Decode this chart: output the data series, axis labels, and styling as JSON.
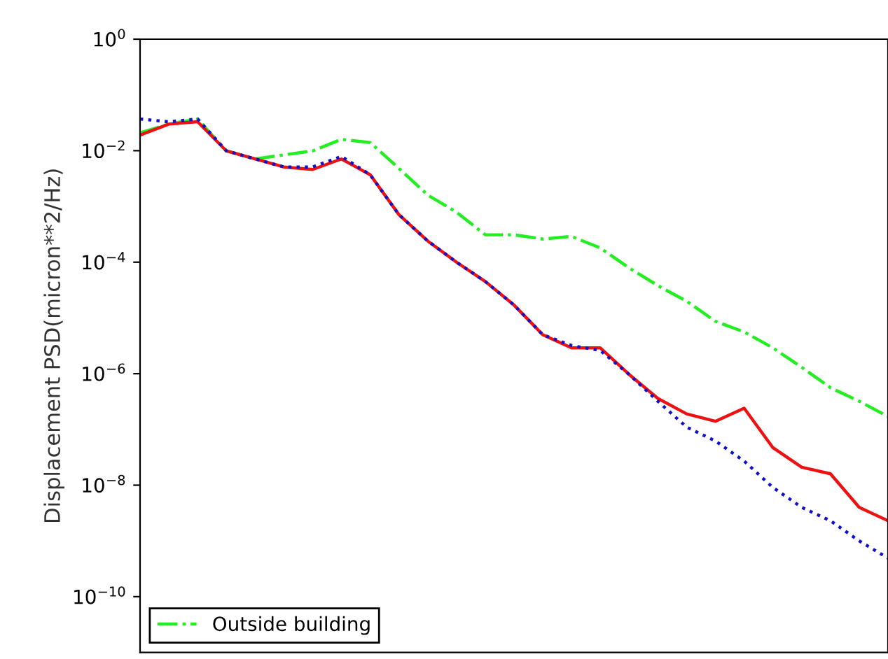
{
  "chart_data": {
    "type": "line",
    "ylabel": "Displacement PSD(micron**2/Hz)",
    "categories": [
      null,
      null,
      null,
      null,
      null,
      null,
      null,
      null,
      null,
      null,
      null,
      null,
      null,
      null,
      null,
      null,
      null,
      null,
      null,
      null,
      null,
      null,
      null,
      null,
      null,
      null,
      null
    ],
    "log": "y",
    "ylim": [
      1e-11,
      1
    ],
    "yticks": [
      {
        "value": 1,
        "label": "10$^{0}$"
      },
      {
        "value": 0.01,
        "label": "10$^{−2}$"
      },
      {
        "value": 0.0001,
        "label": "10$^{−4}$"
      },
      {
        "value": 1e-06,
        "label": "10$^{−6}$"
      },
      {
        "value": 1e-08,
        "label": "10$^{−8}$"
      },
      {
        "value": 1e-10,
        "label": "10$^{−10}$"
      }
    ],
    "tick_labels": "y",
    "grid": false,
    "legend": "bottom left",
    "marker": "none",
    "series": [
      {
        "name": "Outside building",
        "color": "#22ee22",
        "line_style": "dashdot",
        "values": [
          0.021,
          0.03,
          0.037,
          0.0099,
          0.0071,
          0.0084,
          0.0099,
          0.016,
          0.014,
          0.0048,
          0.0016,
          0.00079,
          0.00031,
          0.00031,
          0.00026,
          0.00029,
          0.00018,
          7.9e-05,
          3.8e-05,
          2e-05,
          8.7e-06,
          5.6e-06,
          2.9e-06,
          1.3e-06,
          5.6e-07,
          3.2e-07,
          1.7e-07
        ]
      },
      {
        "color": "#ee1111",
        "line_style": "solid",
        "values": [
          0.019,
          0.03,
          0.033,
          0.0099,
          0.0071,
          0.0051,
          0.0046,
          0.0071,
          0.0037,
          0.00071,
          0.00024,
          0.0001,
          4.5e-05,
          1.7e-05,
          5e-06,
          2.9e-06,
          2.9e-06,
          9.7e-07,
          3.6e-07,
          1.9e-07,
          1.4e-07,
          2.4e-07,
          4.7e-08,
          2.1e-08,
          1.6e-08,
          4e-09,
          2.3e-09
        ]
      },
      {
        "color": "#1111cc",
        "line_style": "dotted",
        "values": [
          0.037,
          0.033,
          0.037,
          0.0099,
          0.0071,
          0.0051,
          0.0051,
          0.0079,
          0.0037,
          0.00071,
          0.00024,
          0.0001,
          4.5e-05,
          1.7e-05,
          5e-06,
          3.2e-06,
          2.6e-06,
          9.7e-07,
          3.2e-07,
          1.1e-07,
          6.2e-08,
          2.7e-08,
          9.1e-09,
          4e-09,
          2.3e-09,
          1e-09,
          4.9e-10
        ]
      }
    ]
  }
}
